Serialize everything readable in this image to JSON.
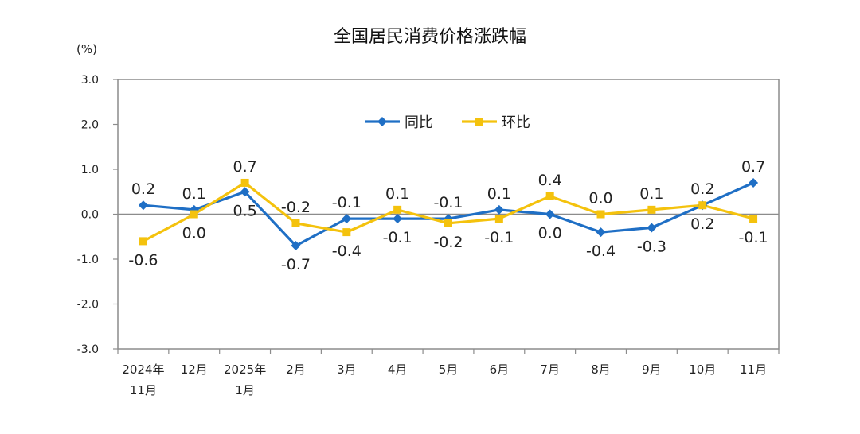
{
  "chart_data": {
    "type": "line",
    "title": "全国居民消费价格涨跌幅",
    "unit_label": "(%)",
    "ylim": [
      -3.0,
      3.0
    ],
    "yticks": [
      "3.0",
      "2.0",
      "1.0",
      "0.0",
      "-1.0",
      "-2.0",
      "-3.0"
    ],
    "ytick_values": [
      3,
      2,
      1,
      0,
      -1,
      -2,
      -3
    ],
    "categories": [
      [
        "2024年",
        "11月"
      ],
      [
        "12月"
      ],
      [
        "2025年",
        "1月"
      ],
      [
        "2月"
      ],
      [
        "3月"
      ],
      [
        "4月"
      ],
      [
        "5月"
      ],
      [
        "6月"
      ],
      [
        "7月"
      ],
      [
        "8月"
      ],
      [
        "9月"
      ],
      [
        "10月"
      ],
      [
        "11月"
      ]
    ],
    "series": [
      {
        "name": "同比",
        "color": "#1f6fc5",
        "marker": "diamond",
        "values": [
          0.2,
          0.1,
          0.5,
          -0.7,
          -0.1,
          -0.1,
          -0.1,
          0.1,
          0.0,
          -0.4,
          -0.3,
          0.2,
          0.7
        ],
        "labels": [
          "0.2",
          "0.1",
          "0.5",
          "-0.7",
          "-0.1",
          "-0.1",
          "-0.1",
          "0.1",
          "0.0",
          "-0.4",
          "-0.3",
          "0.2",
          "0.7"
        ],
        "label_positions": [
          "above",
          "above",
          "below",
          "below",
          "above",
          "below",
          "above",
          "above",
          "below",
          "below",
          "below",
          "below",
          "above"
        ]
      },
      {
        "name": "环比",
        "color": "#f4c20d",
        "marker": "square",
        "values": [
          -0.6,
          0.0,
          0.7,
          -0.2,
          -0.4,
          0.1,
          -0.2,
          -0.1,
          0.4,
          0.0,
          0.1,
          0.2,
          -0.1
        ],
        "labels": [
          "-0.6",
          "0.0",
          "0.7",
          "-0.2",
          "-0.4",
          "0.1",
          "-0.2",
          "-0.1",
          "0.4",
          "0.0",
          "0.1",
          "0.2",
          "-0.1"
        ],
        "label_positions": [
          "below",
          "below",
          "above",
          "above",
          "below",
          "above",
          "below",
          "below",
          "above",
          "above",
          "above",
          "above",
          "below"
        ]
      }
    ],
    "legend": "top-center",
    "grid": false
  }
}
